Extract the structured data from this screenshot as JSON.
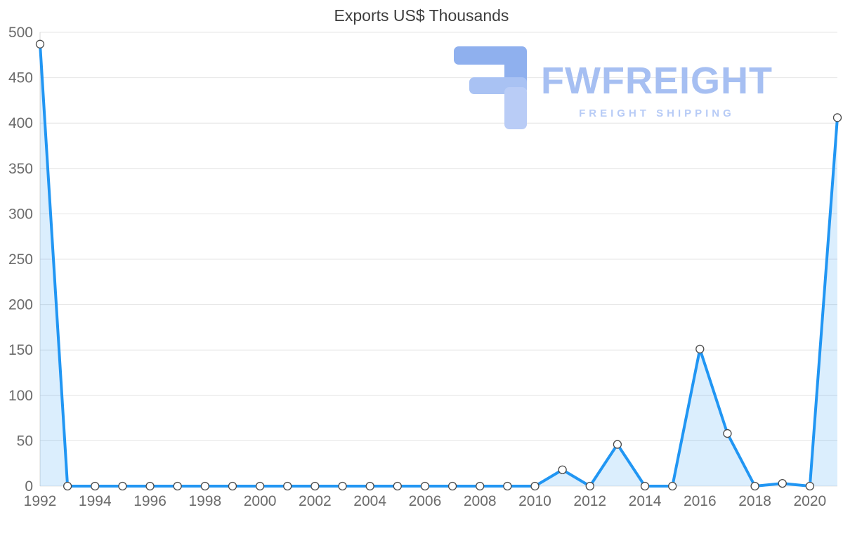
{
  "title": "Exports US$ Thousands",
  "watermark": {
    "logo_icon": "fwfreight-logo",
    "brand": "FWFREIGHT",
    "tagline": "FREIGHT SHIPPING",
    "brand_color": "#a6bff2",
    "tagline_color": "#b7cbf6"
  },
  "chart_data": {
    "type": "area",
    "title": "Exports US$ Thousands",
    "series_name": "Exports US$ Thousands",
    "x": [
      1992,
      1993,
      1994,
      1995,
      1996,
      1997,
      1998,
      1999,
      2000,
      2001,
      2002,
      2003,
      2004,
      2005,
      2006,
      2007,
      2008,
      2009,
      2010,
      2011,
      2012,
      2013,
      2014,
      2015,
      2016,
      2017,
      2018,
      2019,
      2020,
      2021
    ],
    "values": [
      487,
      0,
      0,
      0,
      0,
      0,
      0,
      0,
      0,
      0,
      0,
      0,
      0,
      0,
      0,
      0,
      0,
      0,
      0,
      18,
      0,
      46,
      0,
      0,
      151,
      58,
      0,
      3,
      0,
      406
    ],
    "ylim": [
      0,
      500
    ],
    "ytick_step": 50,
    "xtick_labels": [
      1992,
      1994,
      1996,
      1998,
      2000,
      2002,
      2004,
      2006,
      2008,
      2010,
      2012,
      2014,
      2016,
      2018,
      2020
    ],
    "grid": "horizontal",
    "legend": "none",
    "line_color": "#2196f3",
    "fill_color": "rgba(33,150,243,0.16)",
    "marker_fill": "#ffffff",
    "marker_stroke": "#4a4a4a",
    "axis_label_color": "#6b6b6b"
  }
}
